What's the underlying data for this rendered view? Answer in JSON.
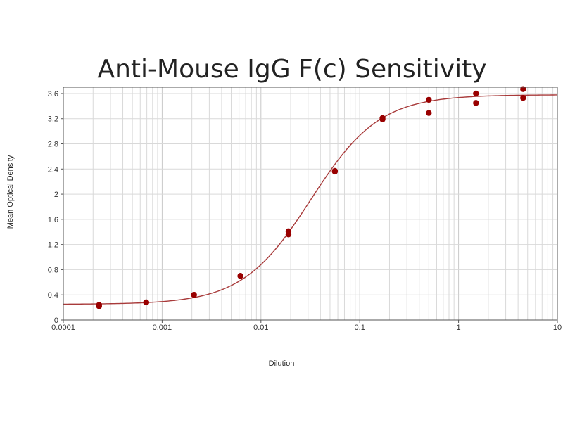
{
  "chart_data": {
    "type": "scatter",
    "title": "Anti-Mouse IgG F(c) Sensitivity",
    "xlabel": "Dilution",
    "ylabel": "Mean Optical Density",
    "x_scale": "log",
    "xlim": [
      0.0001,
      10
    ],
    "ylim": [
      0,
      3.7
    ],
    "x_tick_labels": [
      "0.0001",
      "0.001",
      "0.01",
      "0.1",
      "1",
      "10"
    ],
    "y_tick_labels": [
      "0",
      "0.4",
      "0.8",
      "1.2",
      "1.6",
      "2",
      "2.4",
      "2.8",
      "3.2",
      "3.6"
    ],
    "grid": true,
    "legend": "none",
    "colors": {
      "points": "#990000",
      "curve": "#a83a3a",
      "grid": "#d9d9d9",
      "frame": "#555555"
    },
    "series": [
      {
        "points": [
          [
            0.00023,
            0.24
          ],
          [
            0.00023,
            0.22
          ],
          [
            0.00069,
            0.28
          ],
          [
            0.00069,
            0.28
          ],
          [
            0.0021,
            0.4
          ],
          [
            0.0021,
            0.4
          ],
          [
            0.0062,
            0.7
          ],
          [
            0.0062,
            0.7
          ],
          [
            0.019,
            1.41
          ],
          [
            0.019,
            1.36
          ],
          [
            0.056,
            2.37
          ],
          [
            0.056,
            2.36
          ],
          [
            0.17,
            3.21
          ],
          [
            0.17,
            3.19
          ],
          [
            0.5,
            3.5
          ],
          [
            0.5,
            3.29
          ],
          [
            1.5,
            3.6
          ],
          [
            1.5,
            3.45
          ],
          [
            4.5,
            3.67
          ],
          [
            4.5,
            3.53
          ]
        ]
      }
    ],
    "fit_curve": {
      "type": "4PL",
      "bottom": 0.25,
      "top": 3.58,
      "ec50": 0.032,
      "hill": 1.25
    }
  }
}
